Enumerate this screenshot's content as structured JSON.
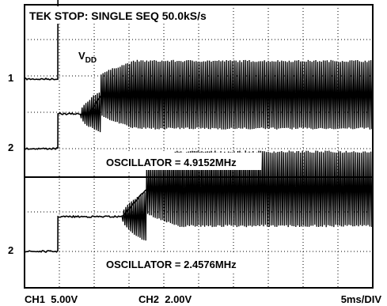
{
  "chart_data": [
    {
      "type": "line",
      "panel": "top",
      "header": "TEK STOP: SINGLE SEQ 50.0kS/s",
      "caption": "OSCILLATOR = 4.9152MHz",
      "signal_label": "VDD",
      "channel_markers": [
        "1",
        "2"
      ],
      "grid": "on",
      "x_unit": "ms",
      "xlim": [
        0,
        50
      ],
      "series": [
        {
          "name": "VDD",
          "x": [
            0,
            4.8,
            4.8,
            10,
            20,
            30,
            40,
            50
          ],
          "y": [
            0,
            0,
            5.0,
            5.0,
            5.1,
            5.1,
            5.2,
            5.2
          ]
        },
        {
          "name": "OSCILLATOR",
          "x": [
            0,
            4.8,
            4.8,
            8.0,
            9.5,
            11,
            15,
            50
          ],
          "y": [
            0,
            0,
            2.0,
            2.0,
            2.1,
            3.1,
            3.1,
            3.1
          ],
          "oscillation_start_ms": 8.0,
          "envelope_amplitude_div": 2.0
        }
      ]
    },
    {
      "type": "line",
      "panel": "bottom",
      "caption": "OSCILLATOR = 2.4576MHz",
      "channel_markers": [
        "2"
      ],
      "grid": "on",
      "x_unit": "ms",
      "xlim": [
        0,
        50
      ],
      "series": [
        {
          "name": "OSCILLATOR",
          "x": [
            0,
            4.8,
            4.8,
            14.0,
            17.5,
            20,
            50
          ],
          "y": [
            0,
            0,
            2.0,
            2.0,
            3.6,
            3.6,
            3.6
          ],
          "oscillation_start_ms": 14.0,
          "envelope_amplitude_div": 2.2
        }
      ]
    }
  ],
  "footer": {
    "ch1": "CH1  5.00V",
    "ch2": "CH2  2.00V",
    "timebase": "5ms/DIV"
  },
  "labels": {
    "vdd_main": "V",
    "vdd_sub": "DD"
  }
}
